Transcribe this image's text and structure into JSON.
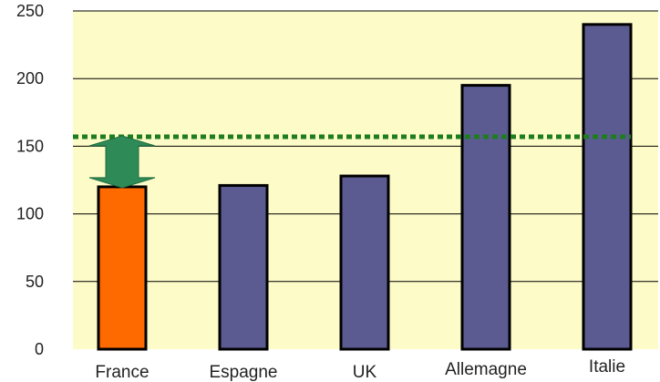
{
  "chart_data": {
    "type": "bar",
    "title": "",
    "xlabel": "",
    "ylabel": "",
    "categories": [
      "France",
      "Espagne",
      "UK",
      "Allemagne",
      "Italie"
    ],
    "values": [
      120,
      121,
      128,
      195,
      240
    ],
    "ylim": [
      0,
      250
    ],
    "yticks": [
      "0",
      "50",
      "100",
      "150",
      "200",
      "250"
    ],
    "grid": true,
    "reference_line": {
      "value": 157,
      "color": "#1e7d1e",
      "style": "dotted"
    },
    "gap_arrow": {
      "from": 120,
      "to": 157,
      "color": "#2e8b57"
    },
    "colors": {
      "plot_background": "#fdfbc8",
      "highlight_bar": "#ff6a00",
      "default_bar": "#5b5b91",
      "bar_outline": "#000000",
      "gridline": "#000000"
    },
    "highlight_category": "France"
  }
}
